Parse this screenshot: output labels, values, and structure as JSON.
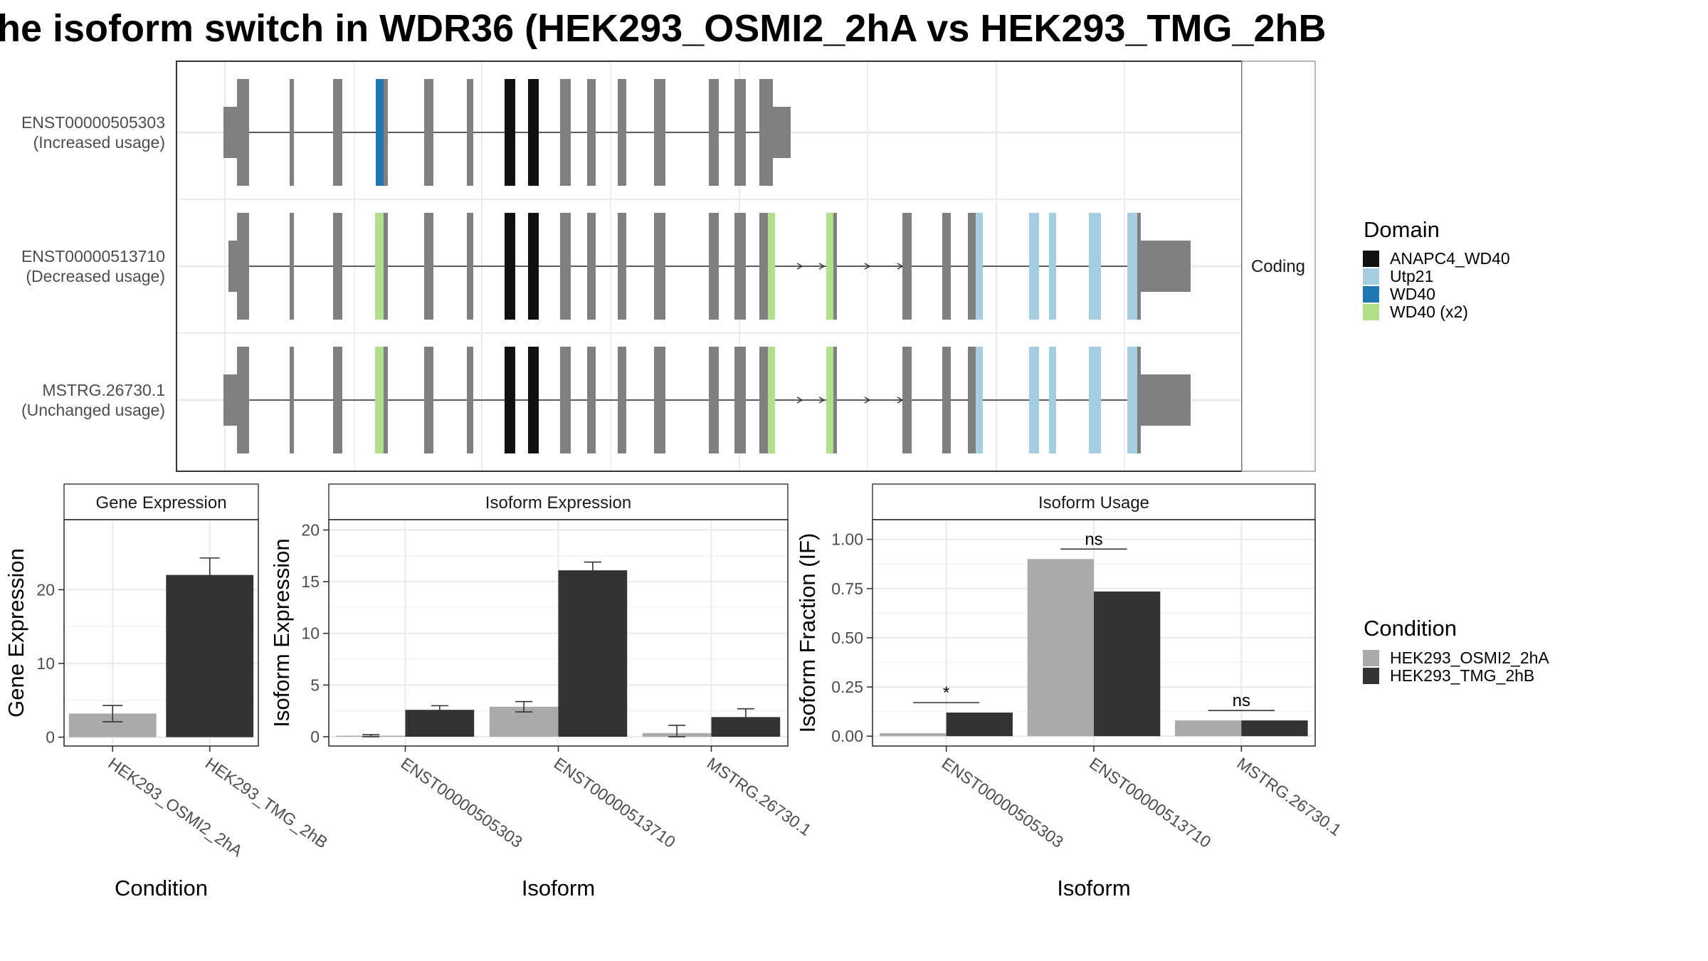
{
  "figure": {
    "title": "he isoform switch in WDR36 (HEK293_OSMI2_2hA vs HEK293_TMG_2hB",
    "strip_label": "Coding"
  },
  "colors": {
    "exon": "#808080",
    "ANAPC4_WD40": "#111111",
    "Utp21": "#a6cee3",
    "WD40": "#1f78b4",
    "WD40 (x2)": "#b2df8a",
    "cond_a": "#aaaaaa",
    "cond_b": "#333333"
  },
  "transcripts": [
    {
      "name": "ENST00000505303",
      "status": "(Increased usage)"
    },
    {
      "name": "ENST00000513710",
      "status": "(Decreased usage)"
    },
    {
      "name": "MSTRG.26730.1",
      "status": "(Unchanged usage)"
    }
  ],
  "domain_legend": {
    "title": "Domain",
    "items": [
      "ANAPC4_WD40",
      "Utp21",
      "WD40",
      "WD40 (x2)"
    ]
  },
  "condition_legend": {
    "title": "Condition",
    "items": [
      "HEK293_OSMI2_2hA",
      "HEK293_TMG_2hB"
    ]
  },
  "chart_data": [
    {
      "type": "bar",
      "title": "Gene Expression",
      "xlabel": "Condition",
      "ylabel": "Gene Expression",
      "categories": [
        "HEK293_OSMI2_2hA",
        "HEK293_TMG_2hB"
      ],
      "values": [
        3.2,
        22.0
      ],
      "errors": [
        [
          2.1,
          4.3
        ],
        [
          19.8,
          24.3
        ]
      ],
      "yticks": [
        0,
        10,
        20
      ],
      "ylim": [
        -1.2,
        29.5
      ]
    },
    {
      "type": "bar",
      "title": "Isoform Expression",
      "xlabel": "Isoform",
      "ylabel": "Isoform Expression",
      "categories": [
        "ENST00000505303",
        "ENST00000513710",
        "MSTRG.26730.1"
      ],
      "series": [
        {
          "name": "HEK293_OSMI2_2hA",
          "values": [
            0.1,
            2.9,
            0.35
          ],
          "errors": [
            [
              0.0,
              0.2
            ],
            [
              2.4,
              3.4
            ],
            [
              0.0,
              1.1
            ]
          ]
        },
        {
          "name": "HEK293_TMG_2hB",
          "values": [
            2.6,
            16.1,
            1.9
          ],
          "errors": [
            [
              2.2,
              3.0
            ],
            [
              15.3,
              16.9
            ],
            [
              1.1,
              2.7
            ]
          ]
        }
      ],
      "yticks": [
        0,
        5,
        10,
        15,
        20
      ],
      "ylim": [
        -0.9,
        21
      ]
    },
    {
      "type": "bar",
      "title": "Isoform Usage",
      "xlabel": "Isoform",
      "ylabel": "Isoform Fraction (IF)",
      "categories": [
        "ENST00000505303",
        "ENST00000513710",
        "MSTRG.26730.1"
      ],
      "series": [
        {
          "name": "HEK293_OSMI2_2hA",
          "values": [
            0.015,
            0.9,
            0.08
          ]
        },
        {
          "name": "HEK293_TMG_2hB",
          "values": [
            0.12,
            0.735,
            0.08
          ]
        }
      ],
      "significance": [
        "*",
        "ns",
        "ns"
      ],
      "yticks": [
        0.0,
        0.25,
        0.5,
        0.75,
        1.0
      ],
      "ytick_labels": [
        "0.00",
        "0.25",
        "0.50",
        "0.75",
        "1.00"
      ],
      "ylim": [
        -0.05,
        1.1
      ]
    }
  ]
}
